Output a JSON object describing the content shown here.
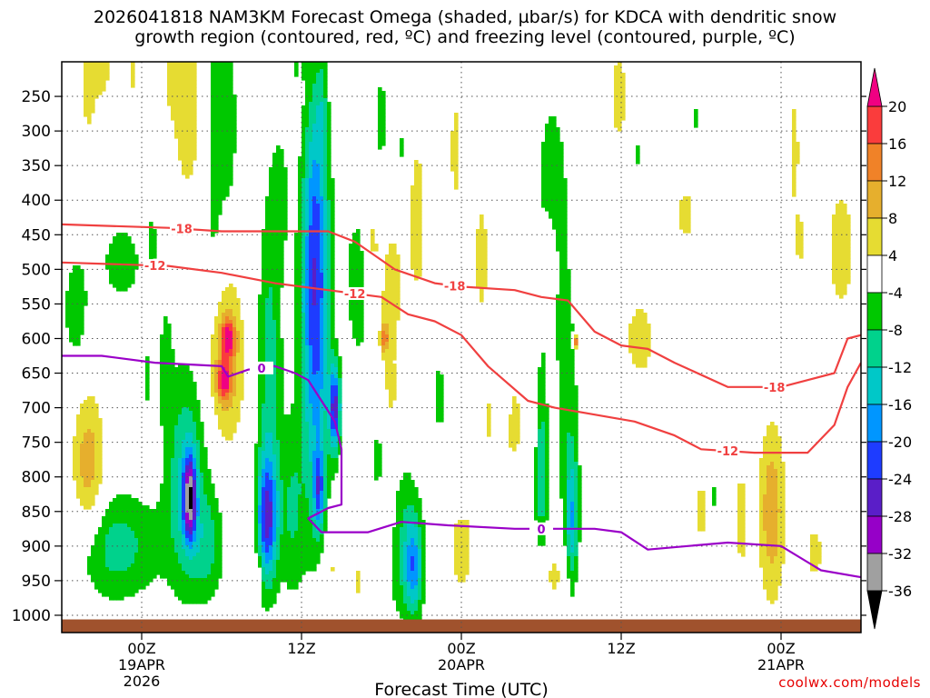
{
  "chart_data": {
    "type": "heatmap",
    "title_line1": "2026041818 NAM3KM Forecast Omega (shaded, µbar/s) for KDCA with dendritic snow",
    "title_line2": "growth region (contoured, red, ºC) and freezing level (contoured, purple, ºC)",
    "xlabel": "Forecast Time (UTC)",
    "x_range_hours": [
      0,
      60
    ],
    "y_range_hpa": [
      200,
      1025
    ],
    "y_ticks": [
      250,
      300,
      350,
      400,
      450,
      500,
      550,
      600,
      650,
      700,
      750,
      800,
      850,
      900,
      950,
      1000
    ],
    "y_tick_labels": [
      "250",
      "300",
      "350",
      "400",
      "450",
      "500",
      "550",
      "600",
      "650",
      "700",
      "750",
      "800",
      "850",
      "900",
      "950",
      "1000"
    ],
    "x_ticks": [
      {
        "hour": 6,
        "label": "00Z",
        "sub1": "19APR",
        "sub2": "2026"
      },
      {
        "hour": 18,
        "label": "12Z",
        "sub1": "",
        "sub2": ""
      },
      {
        "hour": 30,
        "label": "00Z",
        "sub1": "20APR",
        "sub2": ""
      },
      {
        "hour": 42,
        "label": "12Z",
        "sub1": "",
        "sub2": ""
      },
      {
        "hour": 54,
        "label": "00Z",
        "sub1": "21APR",
        "sub2": ""
      }
    ],
    "colorbar": {
      "levels": [
        -36,
        -32,
        -28,
        -24,
        -20,
        -16,
        -12,
        -8,
        -4,
        4,
        8,
        12,
        16,
        20
      ],
      "labels": [
        "20",
        "16",
        "12",
        "8",
        "4",
        "-4",
        "-8",
        "-12",
        "-16",
        "-20",
        "-24",
        "-28",
        "-32",
        "-36"
      ],
      "colors": [
        "#000000",
        "#a0a0a0",
        "#9600c8",
        "#5a1ec8",
        "#1e3cff",
        "#0096ff",
        "#00c8c8",
        "#00d28c",
        "#00c800",
        "#ffffff",
        "#e6dc32",
        "#e6af2d",
        "#f08228",
        "#fa3c3c",
        "#f00082"
      ]
    },
    "omega_features": [
      {
        "h": 2.0,
        "p": 220,
        "dh": 0.9,
        "dp": 150,
        "v": 5
      },
      {
        "h": 3.2,
        "p": 200,
        "dh": 0.6,
        "dp": 60,
        "v": 5
      },
      {
        "h": 5.3,
        "p": 210,
        "dh": 0.5,
        "dp": 55,
        "v": 5
      },
      {
        "h": 9.5,
        "p": 270,
        "dh": 1.4,
        "dp": 160,
        "v": 6
      },
      {
        "h": 8.3,
        "p": 200,
        "dh": 0.6,
        "dp": 70,
        "v": 5
      },
      {
        "h": 21.3,
        "p": 370,
        "dh": 0.6,
        "dp": 60,
        "v": 5
      },
      {
        "h": 20.6,
        "p": 555,
        "dh": 1.0,
        "dp": 140,
        "v": 5
      },
      {
        "h": 23.3,
        "p": 460,
        "dh": 0.6,
        "dp": 90,
        "v": 7
      },
      {
        "h": 24.7,
        "p": 600,
        "dh": 1.0,
        "dp": 190,
        "v": 8
      },
      {
        "h": 26.7,
        "p": 430,
        "dh": 0.9,
        "dp": 190,
        "v": 5
      },
      {
        "h": 29.6,
        "p": 330,
        "dh": 0.7,
        "dp": 120,
        "v": 5
      },
      {
        "h": 31.5,
        "p": 480,
        "dh": 0.8,
        "dp": 120,
        "v": 5
      },
      {
        "h": 36.5,
        "p": 490,
        "dh": 0.7,
        "dp": 70,
        "v": 5
      },
      {
        "h": 41.8,
        "p": 250,
        "dh": 0.9,
        "dp": 110,
        "v": 5
      },
      {
        "h": 46.8,
        "p": 420,
        "dh": 1.0,
        "dp": 60,
        "v": 5
      },
      {
        "h": 55.0,
        "p": 330,
        "dh": 0.5,
        "dp": 130,
        "v": 5
      },
      {
        "h": 55.5,
        "p": 460,
        "dh": 0.5,
        "dp": 40,
        "v": 5
      },
      {
        "h": 58.5,
        "p": 470,
        "dh": 1.2,
        "dp": 110,
        "v": 6
      },
      {
        "h": 33.2,
        "p": 720,
        "dh": 2.8,
        "dp": 110,
        "v": 5
      },
      {
        "h": 43.5,
        "p": 600,
        "dh": 2.0,
        "dp": 90,
        "v": 5
      },
      {
        "h": 30.0,
        "p": 900,
        "dh": 1.0,
        "dp": 80,
        "v": 6
      },
      {
        "h": 37.0,
        "p": 940,
        "dh": 1.6,
        "dp": 60,
        "v": 5
      },
      {
        "h": 48.0,
        "p": 850,
        "dh": 0.6,
        "dp": 70,
        "v": 5
      },
      {
        "h": 51.0,
        "p": 860,
        "dh": 0.6,
        "dp": 120,
        "v": 5
      },
      {
        "h": 53.3,
        "p": 850,
        "dh": 1.0,
        "dp": 130,
        "v": 11
      },
      {
        "h": 56.5,
        "p": 910,
        "dh": 0.9,
        "dp": 60,
        "v": 5
      },
      {
        "h": 2.0,
        "p": 790,
        "dh": 1.2,
        "dp": 110,
        "v": 11
      },
      {
        "h": 12.2,
        "p": 630,
        "dh": 1.4,
        "dp": 120,
        "v": 12
      },
      {
        "h": 14.2,
        "p": 850,
        "dh": 0.4,
        "dp": 60,
        "v": 5
      },
      {
        "h": 14.8,
        "p": 930,
        "dh": 0.3,
        "dp": 30,
        "v": 5
      },
      {
        "h": 22.3,
        "p": 950,
        "dh": 0.5,
        "dp": 40,
        "v": 5
      },
      {
        "h": 20.3,
        "p": 930,
        "dh": 0.8,
        "dp": 60,
        "v": 5
      },
      {
        "h": 24.3,
        "p": 870,
        "dh": 0.9,
        "dp": 70,
        "v": 5
      },
      {
        "h": 24.2,
        "p": 600,
        "dh": 0.3,
        "dp": 20,
        "v": 12
      },
      {
        "h": 38.6,
        "p": 605,
        "dh": 0.2,
        "dp": 10,
        "v": 17
      },
      {
        "h": 12.5,
        "p": 600,
        "dh": 0.5,
        "dp": 25,
        "v": 17
      },
      {
        "h": 12.2,
        "p": 660,
        "dh": 0.5,
        "dp": 25,
        "v": 15
      },
      {
        "h": 4.5,
        "p": 490,
        "dh": 2.4,
        "dp": 90,
        "v": -5
      },
      {
        "h": 6.8,
        "p": 460,
        "dh": 0.25,
        "dp": 40,
        "v": -5
      },
      {
        "h": 11.4,
        "p": 330,
        "dh": 0.9,
        "dp": 330,
        "v": -6
      },
      {
        "h": 12.6,
        "p": 290,
        "dh": 0.6,
        "dp": 120,
        "v": -6
      },
      {
        "h": 16.4,
        "p": 390,
        "dh": 0.7,
        "dp": 100,
        "v": -5
      },
      {
        "h": 15.6,
        "p": 650,
        "dh": 0.9,
        "dp": 250,
        "v": -10
      },
      {
        "h": 17.5,
        "p": 210,
        "dh": 0.2,
        "dp": 25,
        "v": -5
      },
      {
        "h": 18.2,
        "p": 210,
        "dh": 0.15,
        "dp": 15,
        "v": -5
      },
      {
        "h": 19.5,
        "p": 250,
        "dh": 0.4,
        "dp": 60,
        "v": -5
      },
      {
        "h": 19.3,
        "p": 560,
        "dh": 1.5,
        "dp": 220,
        "v": -10
      },
      {
        "h": 19.0,
        "p": 580,
        "dh": 1.0,
        "dp": 320,
        "v": -12
      },
      {
        "h": 19.0,
        "p": 400,
        "dh": 0.8,
        "dp": 180,
        "v": -6
      },
      {
        "h": 24.0,
        "p": 290,
        "dh": 0.9,
        "dp": 120,
        "v": -5
      },
      {
        "h": 25.5,
        "p": 330,
        "dh": 0.4,
        "dp": 80,
        "v": -5
      },
      {
        "h": 22.2,
        "p": 520,
        "dh": 1.6,
        "dp": 140,
        "v": -6
      },
      {
        "h": 26.5,
        "p": 620,
        "dh": 2.2,
        "dp": 60,
        "v": -5
      },
      {
        "h": 36.8,
        "p": 420,
        "dh": 1.6,
        "dp": 220,
        "v": -6
      },
      {
        "h": 43.3,
        "p": 335,
        "dh": 0.3,
        "dp": 25,
        "v": -6
      },
      {
        "h": 48.8,
        "p": 830,
        "dh": 0.3,
        "dp": 60,
        "v": -6
      },
      {
        "h": 45.2,
        "p": 600,
        "dh": 0.7,
        "dp": 200,
        "v": -5
      },
      {
        "h": 28.4,
        "p": 700,
        "dh": 0.5,
        "dp": 60,
        "v": -5
      },
      {
        "h": 33.0,
        "p": 700,
        "dh": 0.5,
        "dp": 60,
        "v": -5
      },
      {
        "h": 23.8,
        "p": 770,
        "dh": 0.8,
        "dp": 80,
        "v": -5
      },
      {
        "h": 6.5,
        "p": 660,
        "dh": 0.3,
        "dp": 70,
        "v": -5
      },
      {
        "h": 7.8,
        "p": 640,
        "dh": 0.5,
        "dp": 90,
        "v": -6
      },
      {
        "h": 1.0,
        "p": 560,
        "dh": 1.0,
        "dp": 90,
        "v": -6
      },
      {
        "h": 4.0,
        "p": 900,
        "dh": 3.5,
        "dp": 80,
        "v": -10
      },
      {
        "h": 9.3,
        "p": 800,
        "dh": 1.5,
        "dp": 160,
        "v": -12
      },
      {
        "h": 9.6,
        "p": 830,
        "dh": 0.5,
        "dp": 60,
        "v": -26
      },
      {
        "h": 11.0,
        "p": 900,
        "dh": 1.2,
        "dp": 80,
        "v": -8
      },
      {
        "h": 15.4,
        "p": 860,
        "dh": 0.8,
        "dp": 90,
        "v": -22
      },
      {
        "h": 17.3,
        "p": 850,
        "dh": 0.9,
        "dp": 130,
        "v": -8
      },
      {
        "h": 19.3,
        "p": 820,
        "dh": 0.4,
        "dp": 60,
        "v": -16
      },
      {
        "h": 20.5,
        "p": 700,
        "dh": 0.4,
        "dp": 60,
        "v": -24
      },
      {
        "h": 25.3,
        "p": 880,
        "dh": 1.6,
        "dp": 130,
        "v": -8
      },
      {
        "h": 26.4,
        "p": 930,
        "dh": 0.7,
        "dp": 70,
        "v": -16
      },
      {
        "h": 30.0,
        "p": 800,
        "dh": 0.4,
        "dp": 50,
        "v": -6
      },
      {
        "h": 36.0,
        "p": 790,
        "dh": 0.5,
        "dp": 140,
        "v": -12
      },
      {
        "h": 38.0,
        "p": 730,
        "dh": 0.9,
        "dp": 180,
        "v": -6
      },
      {
        "h": 38.3,
        "p": 870,
        "dh": 0.5,
        "dp": 100,
        "v": -14
      },
      {
        "h": 47.5,
        "p": 280,
        "dh": 0.25,
        "dp": 25,
        "v": -6
      },
      {
        "h": 30.0,
        "p": 330,
        "dh": 0.3,
        "dp": 30,
        "v": -6
      }
    ],
    "freezing_level": {
      "label": "0",
      "points": [
        [
          0,
          625
        ],
        [
          3,
          625
        ],
        [
          7,
          635
        ],
        [
          12,
          640
        ],
        [
          12.5,
          655
        ],
        [
          14,
          645
        ],
        [
          16,
          640
        ],
        [
          17.5,
          650
        ],
        [
          18.5,
          660
        ],
        [
          19.5,
          690
        ],
        [
          20.5,
          720
        ],
        [
          21,
          760
        ],
        [
          21,
          840
        ],
        [
          20,
          845
        ],
        [
          18.5,
          860
        ],
        [
          19.5,
          880
        ],
        [
          23,
          880
        ],
        [
          25.5,
          865
        ],
        [
          29,
          870
        ],
        [
          34,
          875
        ],
        [
          40,
          875
        ],
        [
          42,
          880
        ],
        [
          44,
          905
        ],
        [
          47,
          900
        ],
        [
          50,
          895
        ],
        [
          54,
          900
        ],
        [
          57,
          935
        ],
        [
          60,
          945
        ]
      ]
    },
    "dgz_minus12": {
      "label": "-12",
      "points": [
        [
          0,
          490
        ],
        [
          8,
          495
        ],
        [
          12,
          505
        ],
        [
          16,
          520
        ],
        [
          20,
          530
        ],
        [
          24,
          540
        ],
        [
          26,
          565
        ],
        [
          28,
          575
        ],
        [
          30,
          595
        ],
        [
          32,
          640
        ],
        [
          35,
          690
        ],
        [
          37,
          700
        ],
        [
          40,
          710
        ],
        [
          43,
          720
        ],
        [
          46,
          740
        ],
        [
          48,
          760
        ],
        [
          52,
          765
        ],
        [
          56,
          765
        ],
        [
          58,
          725
        ],
        [
          59,
          670
        ],
        [
          60,
          635
        ]
      ]
    },
    "dgz_minus18": {
      "label": "-18",
      "points": [
        [
          0,
          435
        ],
        [
          8,
          440
        ],
        [
          12,
          445
        ],
        [
          16,
          445
        ],
        [
          20,
          445
        ],
        [
          22,
          460
        ],
        [
          25,
          500
        ],
        [
          28,
          520
        ],
        [
          30,
          525
        ],
        [
          34,
          530
        ],
        [
          36,
          540
        ],
        [
          38,
          545
        ],
        [
          40,
          590
        ],
        [
          42,
          610
        ],
        [
          44,
          615
        ],
        [
          46,
          635
        ],
        [
          50,
          670
        ],
        [
          54,
          670
        ],
        [
          58,
          650
        ],
        [
          59,
          600
        ],
        [
          60,
          595
        ]
      ]
    },
    "credit": "coolwx.com/models"
  }
}
